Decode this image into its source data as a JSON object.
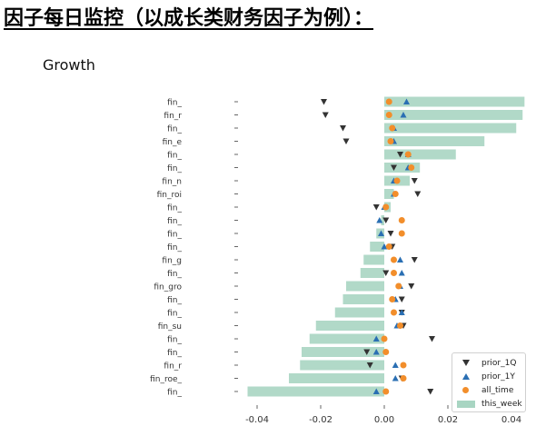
{
  "heading": "因子每日监控（以成长类财务因子为例）：",
  "chart_data": {
    "type": "bar",
    "orientation": "horizontal",
    "title": "Growth",
    "xlabel": "",
    "ylabel": "",
    "xlim": [
      -0.045,
      0.045
    ],
    "xticks": [
      -0.04,
      -0.02,
      0.0,
      0.02,
      0.04
    ],
    "xtick_labels": [
      "-0.04",
      "-0.02",
      "0.00",
      "0.02",
      "0.04"
    ],
    "grid": false,
    "legend_position": "lower-right",
    "categories": [
      "fin_",
      "fin_r",
      "fin_",
      "fin_e",
      "fin_",
      "fin_",
      "fin_n",
      "fin_roi",
      "fin_",
      "fin_",
      "fin_",
      "fin_",
      "fin_g",
      "fin_",
      "fin_gro",
      "fin_",
      "fin_",
      "fin_su",
      "fin_",
      "fin_",
      "fin_r",
      "fin_roe_",
      "fin_"
    ],
    "series": [
      {
        "name": "this_week",
        "marker": "bar",
        "color": "#a8d5c2",
        "values": [
          0.0441,
          0.0435,
          0.0415,
          0.0315,
          0.0225,
          0.0112,
          0.008,
          0.003,
          0.002,
          -0.001,
          -0.0025,
          -0.0045,
          -0.0065,
          -0.0075,
          -0.012,
          -0.013,
          -0.0155,
          -0.0215,
          -0.0235,
          -0.026,
          -0.0265,
          -0.03,
          -0.043
        ]
      },
      {
        "name": "prior_1Q",
        "marker": "triangle-down",
        "color": "#333333",
        "values": [
          -0.019,
          -0.0185,
          -0.013,
          -0.012,
          0.005,
          0.003,
          0.0095,
          0.0105,
          -0.0025,
          0.0005,
          0.002,
          0.0025,
          0.0095,
          0.0005,
          0.0085,
          0.0055,
          0.0055,
          0.006,
          0.015,
          -0.0055,
          -0.0045,
          0.0055,
          0.0145
        ]
      },
      {
        "name": "prior_1Y",
        "marker": "triangle-up",
        "color": "#2a6fb3",
        "values": [
          0.007,
          0.006,
          0.003,
          0.003,
          0.0075,
          0.0075,
          0.003,
          0.003,
          0.0,
          -0.0015,
          -0.001,
          0.0,
          0.005,
          0.0055,
          0.005,
          0.0035,
          0.0055,
          0.004,
          -0.0025,
          -0.0025,
          0.0035,
          0.0035,
          -0.0025
        ]
      },
      {
        "name": "all_time",
        "marker": "dot",
        "color": "#f28e2b",
        "values": [
          0.0015,
          0.0015,
          0.0025,
          0.002,
          0.0075,
          0.0085,
          0.004,
          0.0035,
          0.0005,
          0.0055,
          0.0055,
          0.0015,
          0.003,
          0.003,
          0.0045,
          0.0025,
          0.003,
          0.005,
          0.0,
          0.0005,
          0.006,
          0.006,
          0.0005
        ]
      }
    ],
    "legend": [
      "prior_1Q",
      "prior_1Y",
      "all_time",
      "this_week"
    ]
  }
}
